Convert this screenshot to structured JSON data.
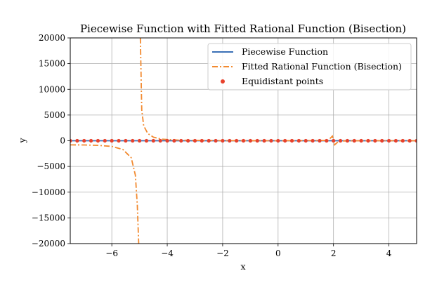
{
  "chart_data": {
    "type": "line",
    "title": "Piecewise Function with Fitted Rational Function (Bisection)",
    "xlabel": "x",
    "ylabel": "y",
    "xlim": [
      -7.5,
      5.0
    ],
    "ylim": [
      -20000,
      20000
    ],
    "xticks": [
      -6,
      -4,
      -2,
      0,
      2,
      4
    ],
    "xtick_labels": [
      "−6",
      "−4",
      "−2",
      "0",
      "2",
      "4"
    ],
    "yticks": [
      -20000,
      -15000,
      -10000,
      -5000,
      0,
      5000,
      10000,
      15000,
      20000
    ],
    "ytick_labels": [
      "−20000",
      "−15000",
      "−10000",
      "−5000",
      "0",
      "5000",
      "10000",
      "15000",
      "20000"
    ],
    "grid": true,
    "legend_position": "top-right",
    "series": [
      {
        "name": "Piecewise Function",
        "style": "solid",
        "color": "#3a70b6",
        "x": [
          -7.5,
          5.0
        ],
        "y": [
          0,
          0
        ]
      },
      {
        "name": "Fitted Rational Function (Bisection)",
        "style": "dashdot",
        "color": "#f28a30",
        "pole_x": -5.0,
        "x": [
          -7.5,
          -7.0,
          -6.5,
          -6.0,
          -5.6,
          -5.3,
          -5.15,
          -5.08,
          -5.03,
          -5.0,
          -4.97,
          -4.92,
          -4.85,
          -4.7,
          -4.5,
          -4.2,
          -3.5,
          -2.0,
          0.0,
          1.8,
          1.96,
          2.0,
          2.04,
          2.2,
          3.0,
          5.0
        ],
        "y": [
          -800,
          -820,
          -900,
          -1100,
          -1700,
          -3300,
          -6700,
          -12500,
          -20000,
          null,
          20000,
          6000,
          2900,
          1400,
          700,
          300,
          100,
          20,
          0,
          50,
          900,
          0,
          -800,
          -50,
          0,
          0
        ]
      },
      {
        "name": "Equidistant points",
        "style": "markers",
        "color": "#e8412c",
        "x_start": -7.5,
        "x_end": 5.0,
        "count": 51,
        "y": 0
      }
    ]
  }
}
